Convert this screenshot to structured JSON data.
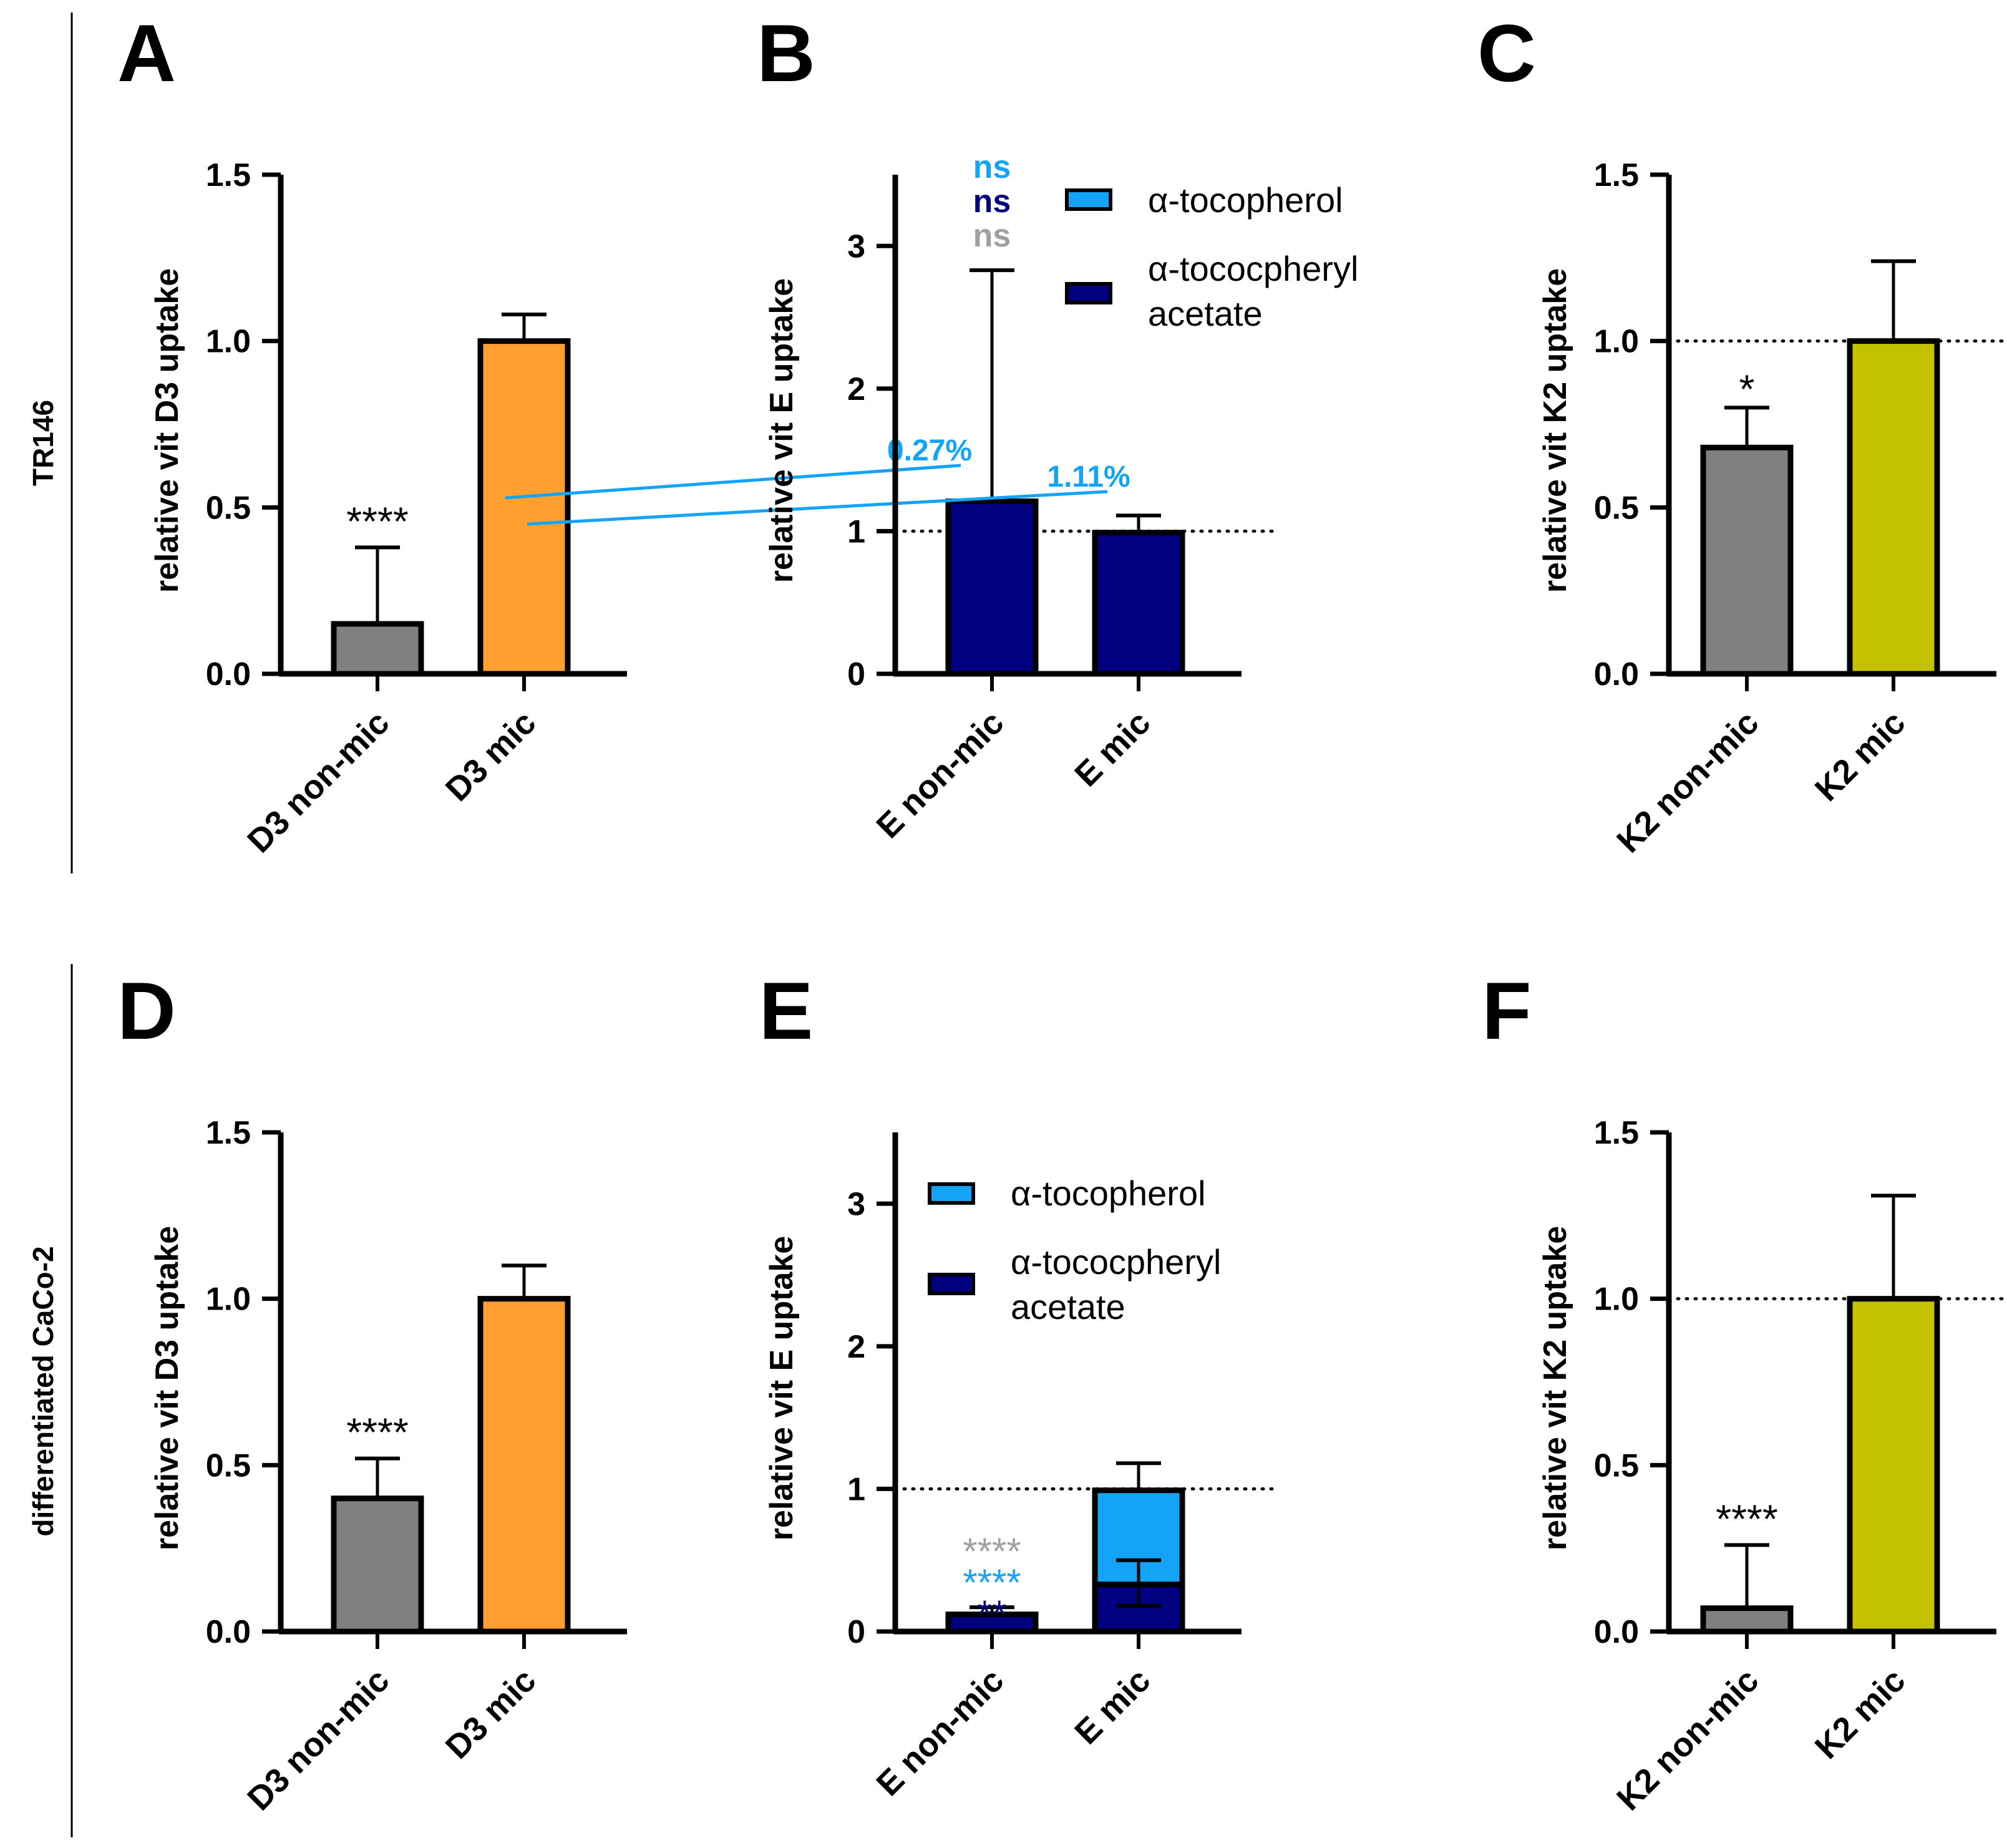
{
  "row_labels": [
    "TR146",
    "differentiated CaCo-2"
  ],
  "legend": {
    "tocopherol": "α-tocopherol",
    "acetate_line1": "α-tococpheryl",
    "acetate_line2": "acetate"
  },
  "colors": {
    "axis": "#000000",
    "non_mic": "#808080",
    "d3_mic": "#FFA030",
    "k2_mic": "#C4C200",
    "tocopherol": "#13A3F7",
    "acetate": "#000080",
    "sig_gray": "#A0A0A0"
  },
  "chart_data": [
    {
      "panel": "A",
      "type": "bar",
      "ylabel": "relative vit D3 uptake",
      "ylim": [
        0,
        1.5
      ],
      "yticks": [
        "0.0",
        "0.5",
        "1.0",
        "1.5"
      ],
      "ytick_values": [
        0,
        0.5,
        1.0,
        1.5
      ],
      "categories": [
        "D3 non-mic",
        "D3 mic"
      ],
      "values": [
        0.15,
        1.0
      ],
      "error_top": [
        0.38,
        1.08
      ],
      "annotations": [
        "****",
        ""
      ],
      "dotted_line": null
    },
    {
      "panel": "B",
      "type": "bar",
      "ylabel": "relative vit E uptake",
      "ylim": [
        0,
        3.5
      ],
      "yticks": [
        "0",
        "1",
        "2",
        "3"
      ],
      "ytick_values": [
        0,
        1,
        2,
        3
      ],
      "categories": [
        "E non-mic",
        "E mic"
      ],
      "stacked": true,
      "series": [
        {
          "name": "α-tococpheryl acetate",
          "values": [
            1.21,
            0.99
          ]
        },
        {
          "name": "α-tocopherol",
          "values": [
            0.0033,
            0.011
          ]
        }
      ],
      "error_top": [
        2.83,
        1.11
      ],
      "percent_labels": [
        "0.27%",
        "1.11%"
      ],
      "significance": [
        [
          "ns",
          "ns",
          "ns"
        ],
        []
      ],
      "dotted_line": 1.0
    },
    {
      "panel": "C",
      "type": "bar",
      "ylabel": "relative vit K2 uptake",
      "ylim": [
        0,
        1.5
      ],
      "yticks": [
        "0.0",
        "0.5",
        "1.0",
        "1.5"
      ],
      "ytick_values": [
        0,
        0.5,
        1.0,
        1.5
      ],
      "categories": [
        "K2 non-mic",
        "K2 mic"
      ],
      "values": [
        0.68,
        1.0
      ],
      "error_top": [
        0.8,
        1.24
      ],
      "annotations": [
        "*",
        ""
      ],
      "dotted_line": 1.0
    },
    {
      "panel": "D",
      "type": "bar",
      "ylabel": "relative vit D3 uptake",
      "ylim": [
        0,
        1.5
      ],
      "yticks": [
        "0.0",
        "0.5",
        "1.0",
        "1.5"
      ],
      "ytick_values": [
        0,
        0.5,
        1.0,
        1.5
      ],
      "categories": [
        "D3 non-mic",
        "D3 mic"
      ],
      "values": [
        0.4,
        1.0
      ],
      "error_top": [
        0.52,
        1.1
      ],
      "annotations": [
        "****",
        ""
      ],
      "dotted_line": null
    },
    {
      "panel": "E",
      "type": "bar",
      "ylabel": "relative vit E uptake",
      "ylim": [
        0,
        3.5
      ],
      "yticks": [
        "0",
        "1",
        "2",
        "3"
      ],
      "ytick_values": [
        0,
        1,
        2,
        3
      ],
      "categories": [
        "E non-mic",
        "E mic"
      ],
      "stacked": true,
      "series": [
        {
          "name": "α-tococpheryl acetate",
          "values": [
            0.12,
            0.33
          ]
        },
        {
          "name": "α-tocopherol",
          "values": [
            0.0,
            0.66
          ]
        }
      ],
      "error_top": [
        0.17,
        1.18
      ],
      "inner_error": [
        null,
        {
          "top": 0.5,
          "bottom": 0.18
        }
      ],
      "significance": [
        [
          "****",
          "****",
          "**"
        ],
        []
      ],
      "dotted_line": 1.0
    },
    {
      "panel": "F",
      "type": "bar",
      "ylabel": "relative vit K2 uptake",
      "ylim": [
        0,
        1.5
      ],
      "yticks": [
        "0.0",
        "0.5",
        "1.0",
        "1.5"
      ],
      "ytick_values": [
        0,
        0.5,
        1.0,
        1.5
      ],
      "categories": [
        "K2 non-mic",
        "K2 mic"
      ],
      "values": [
        0.07,
        1.0
      ],
      "error_top": [
        0.26,
        1.31
      ],
      "annotations": [
        "****",
        ""
      ],
      "dotted_line": 1.0
    }
  ]
}
